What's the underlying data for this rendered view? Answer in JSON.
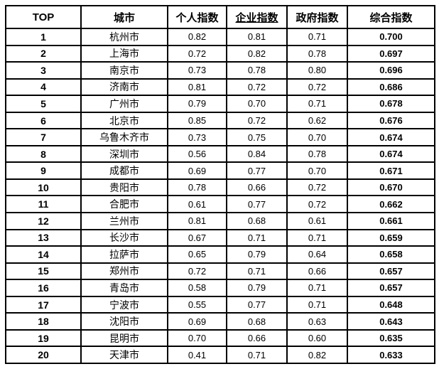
{
  "page": {
    "background_color": "#ffffff",
    "border_color": "#000000",
    "text_color": "#000000"
  },
  "table": {
    "columns": [
      {
        "key": "rank",
        "label": "TOP"
      },
      {
        "key": "city",
        "label": "城市"
      },
      {
        "key": "personal",
        "label": "个人指数"
      },
      {
        "key": "enterprise",
        "label": "企业指数"
      },
      {
        "key": "government",
        "label": "政府指数"
      },
      {
        "key": "composite",
        "label": "综合指数"
      }
    ],
    "rows": [
      [
        "1",
        "杭州市",
        "0.82",
        "0.81",
        "0.71",
        "0.700"
      ],
      [
        "2",
        "上海市",
        "0.72",
        "0.82",
        "0.78",
        "0.697"
      ],
      [
        "3",
        "南京市",
        "0.73",
        "0.78",
        "0.80",
        "0.696"
      ],
      [
        "4",
        "济南市",
        "0.81",
        "0.72",
        "0.72",
        "0.686"
      ],
      [
        "5",
        "广州市",
        "0.79",
        "0.70",
        "0.71",
        "0.678"
      ],
      [
        "6",
        "北京市",
        "0.85",
        "0.72",
        "0.62",
        "0.676"
      ],
      [
        "7",
        "乌鲁木齐市",
        "0.73",
        "0.75",
        "0.70",
        "0.674"
      ],
      [
        "8",
        "深圳市",
        "0.56",
        "0.84",
        "0.78",
        "0.674"
      ],
      [
        "9",
        "成都市",
        "0.69",
        "0.77",
        "0.70",
        "0.671"
      ],
      [
        "10",
        "贵阳市",
        "0.78",
        "0.66",
        "0.72",
        "0.670"
      ],
      [
        "11",
        "合肥市",
        "0.61",
        "0.77",
        "0.72",
        "0.662"
      ],
      [
        "12",
        "兰州市",
        "0.81",
        "0.68",
        "0.61",
        "0.661"
      ],
      [
        "13",
        "长沙市",
        "0.67",
        "0.71",
        "0.71",
        "0.659"
      ],
      [
        "14",
        "拉萨市",
        "0.65",
        "0.79",
        "0.64",
        "0.658"
      ],
      [
        "15",
        "郑州市",
        "0.72",
        "0.71",
        "0.66",
        "0.657"
      ],
      [
        "16",
        "青岛市",
        "0.58",
        "0.79",
        "0.71",
        "0.657"
      ],
      [
        "17",
        "宁波市",
        "0.55",
        "0.77",
        "0.71",
        "0.648"
      ],
      [
        "18",
        "沈阳市",
        "0.69",
        "0.68",
        "0.63",
        "0.643"
      ],
      [
        "19",
        "昆明市",
        "0.70",
        "0.66",
        "0.60",
        "0.635"
      ],
      [
        "20",
        "天津市",
        "0.41",
        "0.71",
        "0.82",
        "0.633"
      ]
    ]
  }
}
